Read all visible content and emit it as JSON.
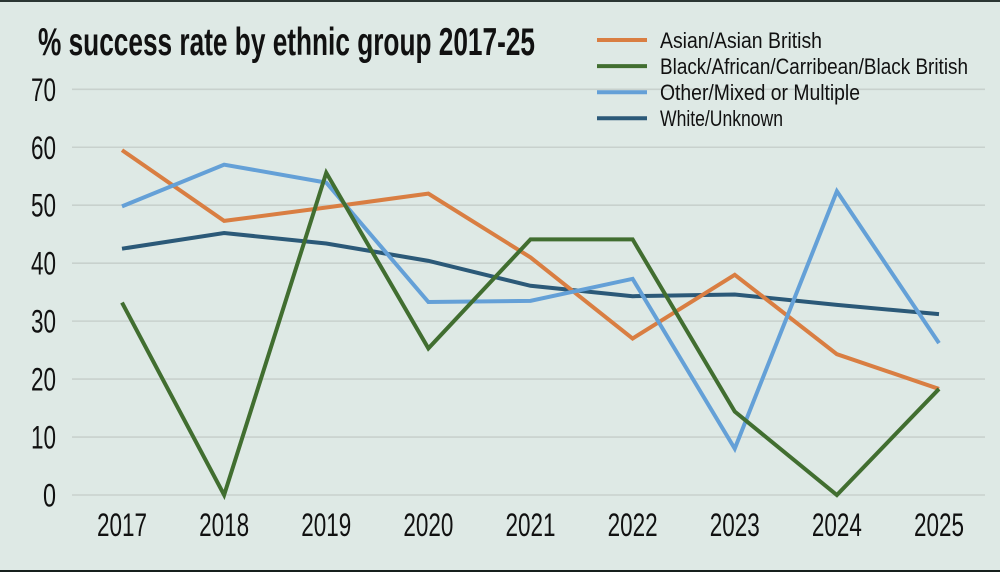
{
  "page": {
    "background": "#dee9e5",
    "top_border_color": "#2b3633",
    "bottom_border_color": "#16201d",
    "text_color": "#111111",
    "gridline_color": "#c8d1cd"
  },
  "chart_data": {
    "type": "line",
    "title": "% success rate by ethnic group 2017-25",
    "xlabel": "",
    "ylabel": "",
    "x": [
      2017,
      2018,
      2019,
      2020,
      2021,
      2022,
      2023,
      2024,
      2025
    ],
    "ylim": [
      0,
      70
    ],
    "yticks": [
      0,
      10,
      20,
      30,
      40,
      50,
      60,
      70
    ],
    "grid": "horizontal gridlines on",
    "legend_position": "top-right",
    "series": [
      {
        "name": "Asian/Asian British",
        "color": "#d97e42",
        "values": [
          59.5,
          47.3,
          49.6,
          52,
          41,
          27,
          38,
          24.3,
          18.3
        ]
      },
      {
        "name": "Black/African/Carribean/Black British",
        "color": "#416e30",
        "values": [
          33.2,
          0,
          55.6,
          25.3,
          44.1,
          44.1,
          14.4,
          0,
          18.3
        ]
      },
      {
        "name": "Other/Mixed or Multiple",
        "color": "#64a0d7",
        "values": [
          49.8,
          57,
          53.9,
          33.3,
          33.5,
          37.3,
          8,
          52.4,
          26.2
        ]
      },
      {
        "name": "White/Unknown",
        "color": "#2b5978",
        "values": [
          42.5,
          45.2,
          43.4,
          40.4,
          36.1,
          34.3,
          34.6,
          32.8,
          31.2
        ]
      }
    ]
  }
}
